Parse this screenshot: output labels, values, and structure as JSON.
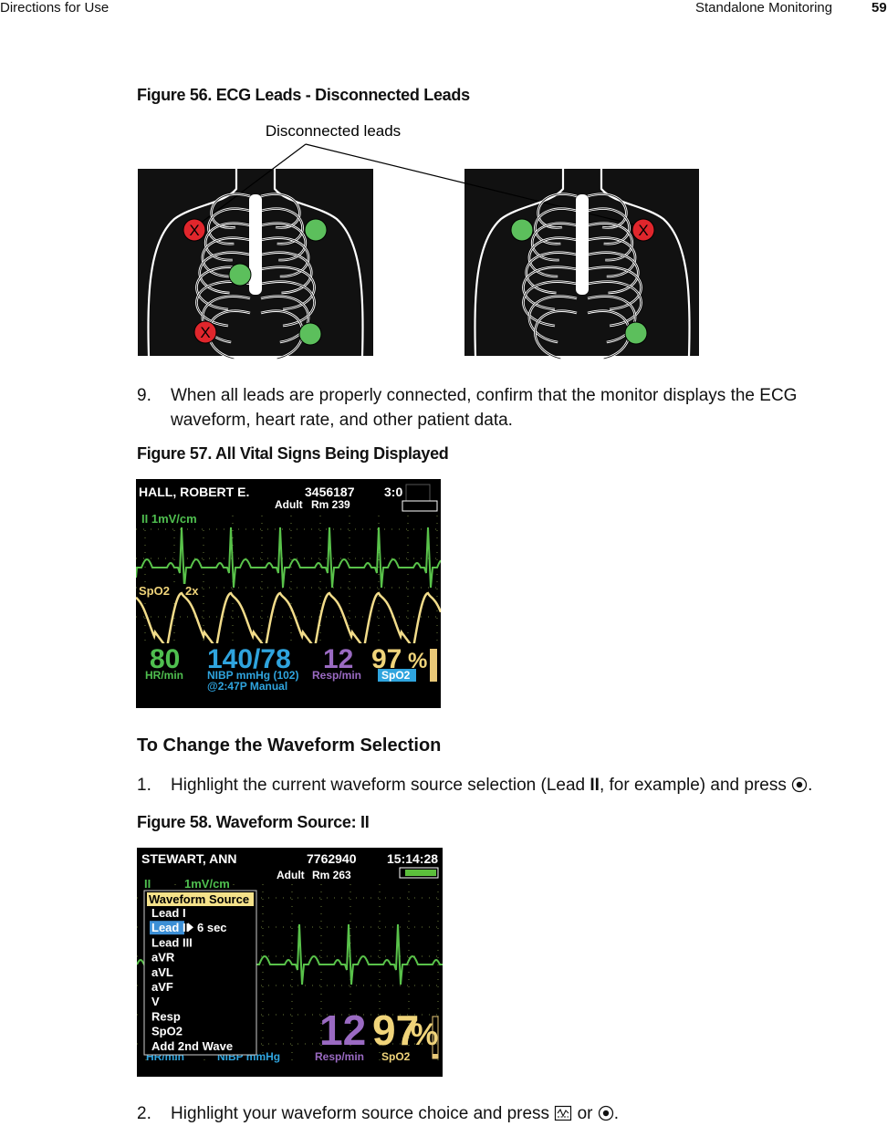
{
  "header": {
    "left": "Directions for Use",
    "section": "Standalone Monitoring",
    "page_number": "59"
  },
  "figure56": {
    "caption": "Figure 56.  ECG Leads - Disconnected Leads",
    "callout": "Disconnected leads",
    "disconnected_mark": "X"
  },
  "step9": {
    "number": "9.",
    "text": "When all leads are properly connected, confirm that the monitor displays the ECG waveform, heart rate, and other patient data."
  },
  "figure57": {
    "caption": "Figure 57.  All Vital Signs Being Displayed",
    "patient_name": "HALL, ROBERT E.",
    "patient_id": "3456187",
    "time": "3:0",
    "patient_type": "Adult",
    "room": "Rm 239",
    "ecg_label": "II  1mV/cm",
    "pleth_label": "SpO2",
    "pleth_scale": "2x",
    "hr": "80",
    "hr_label": "HR/min",
    "nibp": "140/78",
    "nibp_label": "NIBP mmHg (102)",
    "nibp_time": "@2:47P Manual",
    "resp": "12",
    "resp_label": "Resp/min",
    "spo2": "97",
    "spo2_unit": "%",
    "spo2_label": "SpO2"
  },
  "section": {
    "title": "To Change the Waveform Selection"
  },
  "step1": {
    "number": "1.",
    "text_before": "Highlight the current waveform source selection (Lead ",
    "lead": "II",
    "text_after": ", for example) and press ",
    "end": "."
  },
  "figure58": {
    "caption": "Figure 58.  Waveform Source: II",
    "patient_name": "STEWART, ANN",
    "patient_id": "7762940",
    "time": "15:14:28",
    "patient_type": "Adult",
    "room": "Rm 263",
    "ecg_lead": "II",
    "ecg_scale": "1mV/cm",
    "menu": {
      "title": "Waveform Source",
      "items": [
        "Lead I",
        "Lead II",
        "Lead III",
        "aVR",
        "aVL",
        "aVF",
        "V",
        "Resp",
        "SpO2",
        "Add 2nd Wave"
      ],
      "duration": "6 sec"
    },
    "resp": "12",
    "spo2": "97",
    "spo2_unit": "%",
    "hr_label": "HR/min",
    "nibp_label": "NIBP mmHg",
    "resp_label": "Resp/min",
    "spo2_label": "SpO2"
  },
  "step2": {
    "number": "2.",
    "text_before": "Highlight your waveform source choice and press ",
    "text_middle": " or ",
    "end": "."
  }
}
